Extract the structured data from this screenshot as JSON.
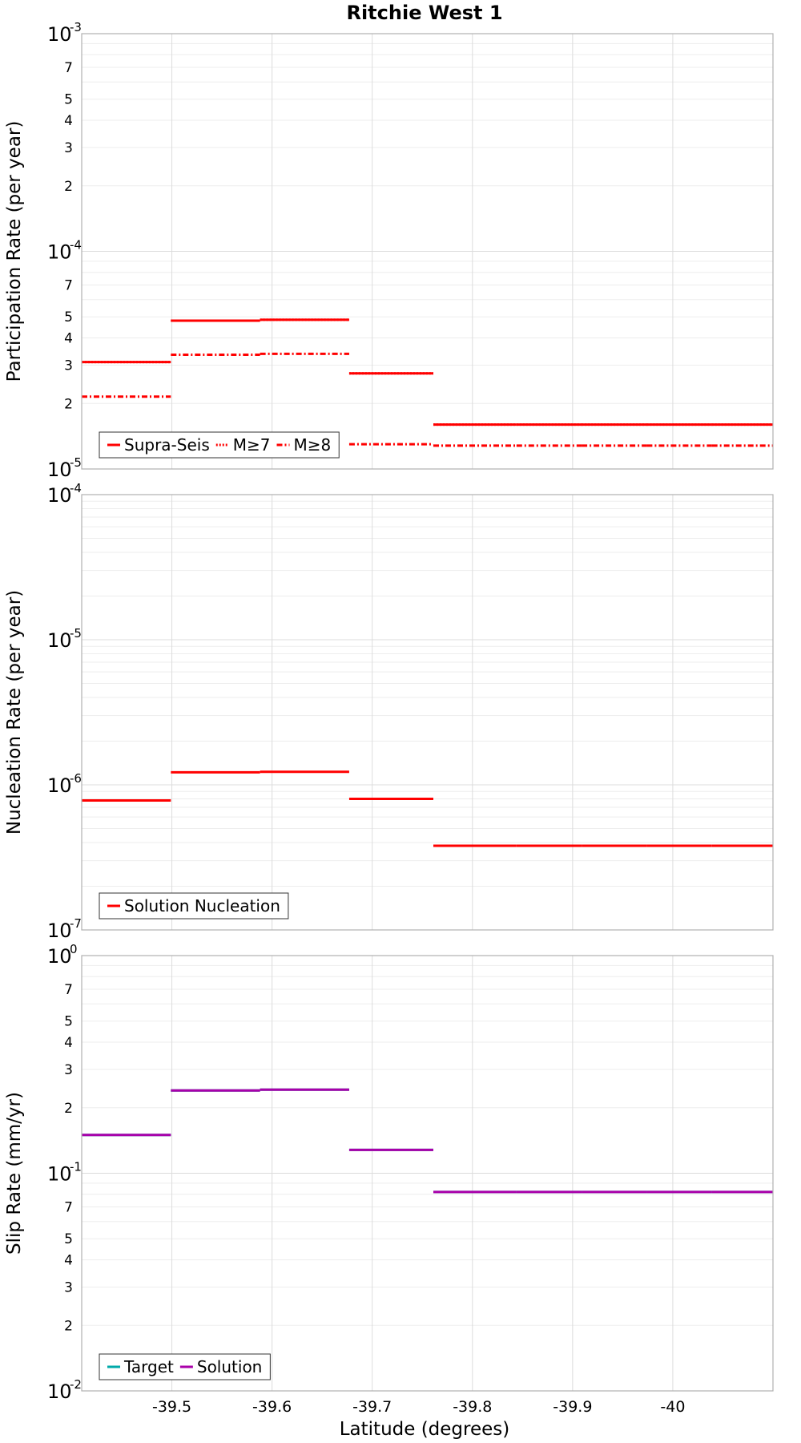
{
  "chart_data": {
    "type": "line",
    "title": "Ritchie West 1",
    "xlabel": "Latitude (degrees)",
    "x_ticks": [
      -39.5,
      -39.6,
      -39.7,
      -39.8,
      -39.9,
      -40
    ],
    "x_tick_labels": [
      "-39.5",
      "-39.6",
      "-39.7",
      "-39.8",
      "-39.9",
      "-40"
    ],
    "xlim": [
      -39.41,
      -40.1
    ],
    "panels": [
      {
        "id": "participation",
        "ylabel": "Participation Rate (per year)",
        "yscale": "log",
        "ylim": [
          1e-05,
          0.001
        ],
        "y_major_labels": [
          {
            "v": 0.001,
            "base": "10",
            "exp": "-3"
          },
          {
            "v": 0.0001,
            "base": "10",
            "exp": "-4"
          },
          {
            "v": 1e-05,
            "base": "10",
            "exp": "-5"
          }
        ],
        "y_minor_labels": [
          {
            "v": 0.0007,
            "t": "7"
          },
          {
            "v": 0.0005,
            "t": "5"
          },
          {
            "v": 0.0004,
            "t": "4"
          },
          {
            "v": 0.0003,
            "t": "3"
          },
          {
            "v": 0.0002,
            "t": "2"
          },
          {
            "v": 7e-05,
            "t": "7"
          },
          {
            "v": 5e-05,
            "t": "5"
          },
          {
            "v": 4e-05,
            "t": "4"
          },
          {
            "v": 3e-05,
            "t": "3"
          },
          {
            "v": 2e-05,
            "t": "2"
          }
        ],
        "legend": [
          "Supra-Seis",
          "M≥7",
          "M≥8"
        ],
        "series": [
          {
            "name": "Supra-Seis",
            "color": "#ff0000",
            "dash": "solid",
            "segments": [
              [
                -39.41,
                -39.499,
                3.1e-05
              ],
              [
                -39.499,
                -39.588,
                4.8e-05
              ],
              [
                -39.588,
                -39.677,
                4.85e-05
              ],
              [
                -39.677,
                -39.761,
                2.75e-05
              ],
              [
                -39.761,
                -39.844,
                1.6e-05
              ],
              [
                -39.844,
                -39.909,
                1.6e-05
              ],
              [
                -39.909,
                -39.974,
                1.6e-05
              ],
              [
                -39.974,
                -40.039,
                1.6e-05
              ],
              [
                -40.039,
                -40.1,
                1.6e-05
              ]
            ]
          },
          {
            "name": "M≥7",
            "color": "#ff0000",
            "dash": "dotted",
            "segments": [
              [
                -39.41,
                -39.499,
                3.1e-05
              ],
              [
                -39.499,
                -39.588,
                4.8e-05
              ],
              [
                -39.588,
                -39.677,
                4.85e-05
              ],
              [
                -39.677,
                -39.761,
                2.75e-05
              ],
              [
                -39.761,
                -39.844,
                1.6e-05
              ],
              [
                -39.844,
                -39.909,
                1.6e-05
              ],
              [
                -39.909,
                -39.974,
                1.6e-05
              ],
              [
                -39.974,
                -40.039,
                1.6e-05
              ],
              [
                -40.039,
                -40.1,
                1.6e-05
              ]
            ]
          },
          {
            "name": "M≥8",
            "color": "#ff0000",
            "dash": "dashdot",
            "segments": [
              [
                -39.41,
                -39.499,
                2.15e-05
              ],
              [
                -39.499,
                -39.588,
                3.35e-05
              ],
              [
                -39.588,
                -39.677,
                3.38e-05
              ],
              [
                -39.677,
                -39.761,
                1.3e-05
              ],
              [
                -39.761,
                -39.844,
                1.28e-05
              ],
              [
                -39.844,
                -39.909,
                1.28e-05
              ],
              [
                -39.909,
                -39.974,
                1.28e-05
              ],
              [
                -39.974,
                -40.039,
                1.28e-05
              ],
              [
                -40.039,
                -40.1,
                1.28e-05
              ]
            ]
          }
        ]
      },
      {
        "id": "nucleation",
        "ylabel": "Nucleation Rate (per year)",
        "yscale": "log",
        "ylim": [
          1e-07,
          0.0001
        ],
        "y_major_labels": [
          {
            "v": 0.0001,
            "base": "10",
            "exp": "-4"
          },
          {
            "v": 1e-05,
            "base": "10",
            "exp": "-5"
          },
          {
            "v": 1e-06,
            "base": "10",
            "exp": "-6"
          },
          {
            "v": 1e-07,
            "base": "10",
            "exp": "-7"
          }
        ],
        "y_minor_labels": [],
        "legend": [
          "Solution Nucleation"
        ],
        "series": [
          {
            "name": "Solution Nucleation",
            "color": "#ff0000",
            "dash": "solid",
            "segments": [
              [
                -39.41,
                -39.499,
                7.8e-07
              ],
              [
                -39.499,
                -39.588,
                1.22e-06
              ],
              [
                -39.588,
                -39.677,
                1.23e-06
              ],
              [
                -39.677,
                -39.761,
                8e-07
              ],
              [
                -39.761,
                -39.844,
                3.8e-07
              ],
              [
                -39.844,
                -39.909,
                3.8e-07
              ],
              [
                -39.909,
                -39.974,
                3.8e-07
              ],
              [
                -39.974,
                -40.039,
                3.8e-07
              ],
              [
                -40.039,
                -40.1,
                3.8e-07
              ]
            ]
          }
        ]
      },
      {
        "id": "slip",
        "ylabel": "Slip Rate (mm/yr)",
        "yscale": "log",
        "ylim": [
          0.01,
          1
        ],
        "y_major_labels": [
          {
            "v": 1,
            "base": "10",
            "exp": "0"
          },
          {
            "v": 0.1,
            "base": "10",
            "exp": "-1"
          },
          {
            "v": 0.01,
            "base": "10",
            "exp": "-2"
          }
        ],
        "y_minor_labels": [
          {
            "v": 0.7,
            "t": "7"
          },
          {
            "v": 0.5,
            "t": "5"
          },
          {
            "v": 0.4,
            "t": "4"
          },
          {
            "v": 0.3,
            "t": "3"
          },
          {
            "v": 0.2,
            "t": "2"
          },
          {
            "v": 0.07,
            "t": "7"
          },
          {
            "v": 0.05,
            "t": "5"
          },
          {
            "v": 0.04,
            "t": "4"
          },
          {
            "v": 0.03,
            "t": "3"
          },
          {
            "v": 0.02,
            "t": "2"
          }
        ],
        "legend": [
          "Target",
          "Solution"
        ],
        "series": [
          {
            "name": "Target",
            "color": "#00aaaa",
            "dash": "solid",
            "segments": [
              [
                -39.41,
                -39.499,
                0.15
              ],
              [
                -39.499,
                -39.588,
                0.24
              ],
              [
                -39.588,
                -39.677,
                0.242
              ],
              [
                -39.677,
                -39.761,
                0.128
              ],
              [
                -39.761,
                -39.844,
                0.082
              ],
              [
                -39.844,
                -39.909,
                0.082
              ],
              [
                -39.909,
                -39.974,
                0.082
              ],
              [
                -39.974,
                -40.039,
                0.082
              ],
              [
                -40.039,
                -40.1,
                0.082
              ]
            ]
          },
          {
            "name": "Solution",
            "color": "#aa00aa",
            "dash": "solid",
            "segments": [
              [
                -39.41,
                -39.499,
                0.15
              ],
              [
                -39.499,
                -39.588,
                0.24
              ],
              [
                -39.588,
                -39.677,
                0.242
              ],
              [
                -39.677,
                -39.761,
                0.128
              ],
              [
                -39.761,
                -39.844,
                0.082
              ],
              [
                -39.844,
                -39.909,
                0.082
              ],
              [
                -39.909,
                -39.974,
                0.082
              ],
              [
                -39.974,
                -40.039,
                0.082
              ],
              [
                -40.039,
                -40.1,
                0.082
              ]
            ]
          }
        ]
      }
    ]
  }
}
